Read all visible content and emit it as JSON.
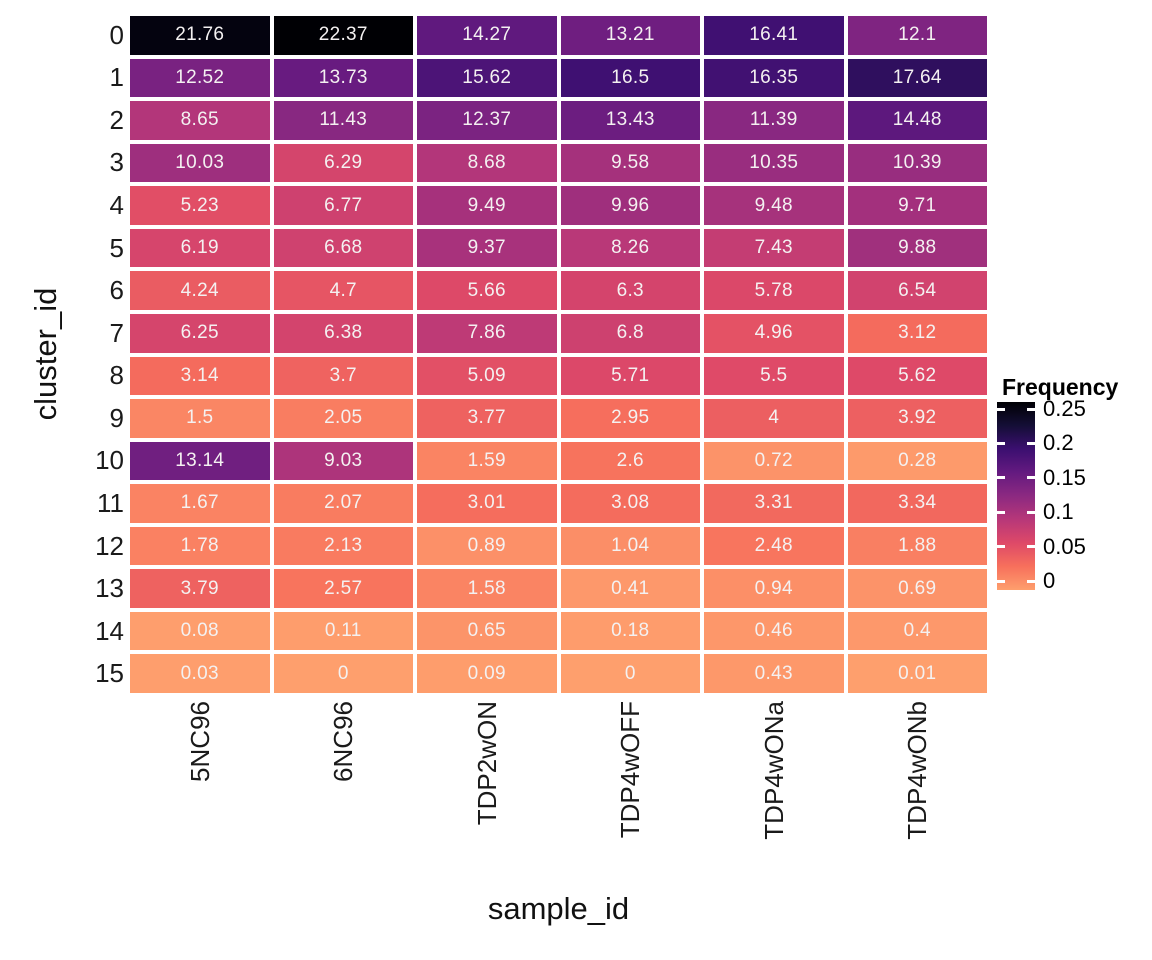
{
  "chart_data": {
    "type": "heatmap",
    "title": "",
    "xlabel": "sample_id",
    "ylabel": "cluster_id",
    "columns": [
      "5NC96",
      "6NC96",
      "TDP2wON",
      "TDP4wOFF",
      "TDP4wONa",
      "TDP4wONb"
    ],
    "rows": [
      "0",
      "1",
      "2",
      "3",
      "4",
      "5",
      "6",
      "7",
      "8",
      "9",
      "10",
      "11",
      "12",
      "13",
      "14",
      "15"
    ],
    "values": [
      [
        21.76,
        22.37,
        14.27,
        13.21,
        16.41,
        12.1
      ],
      [
        12.52,
        13.73,
        15.62,
        16.5,
        16.35,
        17.64
      ],
      [
        8.65,
        11.43,
        12.37,
        13.43,
        11.39,
        14.48
      ],
      [
        10.03,
        6.29,
        8.68,
        9.58,
        10.35,
        10.39
      ],
      [
        5.23,
        6.77,
        9.49,
        9.96,
        9.48,
        9.71
      ],
      [
        6.19,
        6.68,
        9.37,
        8.26,
        7.43,
        9.88
      ],
      [
        4.24,
        4.7,
        5.66,
        6.3,
        5.78,
        6.54
      ],
      [
        6.25,
        6.38,
        7.86,
        6.8,
        4.96,
        3.12
      ],
      [
        3.14,
        3.7,
        5.09,
        5.71,
        5.5,
        5.62
      ],
      [
        1.5,
        2.05,
        3.77,
        2.95,
        4,
        3.92
      ],
      [
        13.14,
        9.03,
        1.59,
        2.6,
        0.72,
        0.28
      ],
      [
        1.67,
        2.07,
        3.01,
        3.08,
        3.31,
        3.34
      ],
      [
        1.78,
        2.13,
        0.89,
        1.04,
        2.48,
        1.88
      ],
      [
        3.79,
        2.57,
        1.58,
        0.41,
        0.94,
        0.69
      ],
      [
        0.08,
        0.11,
        0.65,
        0.18,
        0.46,
        0.4
      ],
      [
        0.03,
        0,
        0.09,
        0,
        0.43,
        0.01
      ]
    ],
    "legend": {
      "title": "Frequency",
      "ticks": [
        "0.25",
        "0.2",
        "0.15",
        "0.1",
        "0.05",
        "0"
      ],
      "position": "right"
    },
    "color_scale": {
      "name": "magma-reversed",
      "value_at_darkest": 22.37,
      "colormap_end": 0.8,
      "stops": [
        [
          0.0,
          "#000004"
        ],
        [
          0.1,
          "#140e36"
        ],
        [
          0.2,
          "#3b0f70"
        ],
        [
          0.3,
          "#641a80"
        ],
        [
          0.4,
          "#8c2981"
        ],
        [
          0.5,
          "#b73779"
        ],
        [
          0.6,
          "#de4968"
        ],
        [
          0.7,
          "#f7705c"
        ],
        [
          0.8,
          "#fe9f6d"
        ],
        [
          0.9,
          "#fece91"
        ],
        [
          1.0,
          "#fcfdbf"
        ]
      ]
    },
    "colors": {
      "background": "#ffffff",
      "cell_text": "#f4f1f1",
      "axis_text": "#1a1a1a",
      "axis_title": "#111111",
      "legend_text": "#000000"
    },
    "grid": false
  }
}
